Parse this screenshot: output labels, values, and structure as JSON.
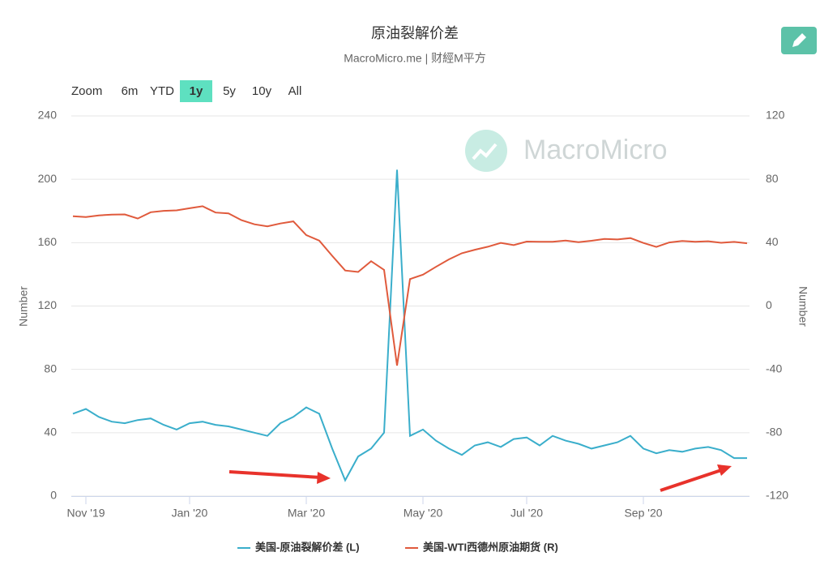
{
  "chart_data": {
    "type": "line",
    "title": "原油裂解价差",
    "subtitle": "MacroMicro.me | 财經M平方",
    "watermark": "MacroMicro",
    "range_selector": {
      "label": "Zoom",
      "buttons": [
        "6m",
        "YTD",
        "1y",
        "5y",
        "10y",
        "All"
      ],
      "selected": 2
    },
    "ylabel": "Number",
    "y2label": "Number",
    "categories": [
      null,
      "Nov '19",
      null,
      null,
      null,
      null,
      null,
      null,
      null,
      "Jan '20",
      null,
      null,
      null,
      null,
      null,
      null,
      null,
      null,
      "Mar '20",
      null,
      null,
      null,
      null,
      null,
      null,
      null,
      null,
      "May '20",
      null,
      null,
      null,
      null,
      null,
      null,
      null,
      "Jul '20",
      null,
      null,
      null,
      null,
      null,
      null,
      null,
      null,
      "Sep '20",
      null,
      null,
      null,
      null,
      null,
      null,
      null,
      null
    ],
    "ylim": [
      0,
      240
    ],
    "yticks": [
      0,
      40,
      80,
      120,
      160,
      200,
      240
    ],
    "y2lim": [
      -120,
      120
    ],
    "y2ticks": [
      -120,
      -80,
      -40,
      0,
      40,
      80,
      120
    ],
    "grid": true,
    "legend": "bottom",
    "series": [
      {
        "name": "美国-原油裂解价差 (L)",
        "color": "#3aaecb",
        "axis": "y",
        "values": [
          52,
          55,
          50,
          47,
          46,
          48,
          49,
          45,
          42,
          46,
          47,
          45,
          44,
          42,
          40,
          38,
          46,
          50,
          56,
          52,
          30,
          10,
          25,
          30,
          40,
          206,
          38,
          42,
          35,
          30,
          26,
          32,
          34,
          31,
          36,
          37,
          32,
          38,
          35,
          33,
          30,
          32,
          34,
          38,
          30,
          27,
          29,
          28,
          30,
          31,
          29,
          24,
          24
        ]
      },
      {
        "name": "美国-WTI西德州原油期货 (R)",
        "color": "#e05a3c",
        "axis": "y2",
        "values": [
          56.7,
          56.2,
          57.2,
          57.7,
          57.8,
          55.2,
          59.2,
          60.1,
          60.4,
          61.7,
          63.0,
          59.0,
          58.5,
          54.2,
          51.6,
          50.3,
          52.1,
          53.4,
          44.8,
          41.3,
          31.7,
          22.4,
          21.5,
          28.3,
          22.8,
          -37.6,
          17.0,
          19.8,
          24.7,
          29.4,
          33.3,
          35.5,
          37.4,
          39.8,
          38.5,
          40.7,
          40.6,
          40.6,
          41.3,
          40.3,
          41.2,
          42.3,
          42.0,
          42.9,
          39.8,
          37.3,
          40.1,
          41.1,
          40.6,
          40.9,
          39.9,
          40.5,
          39.6
        ]
      }
    ]
  }
}
